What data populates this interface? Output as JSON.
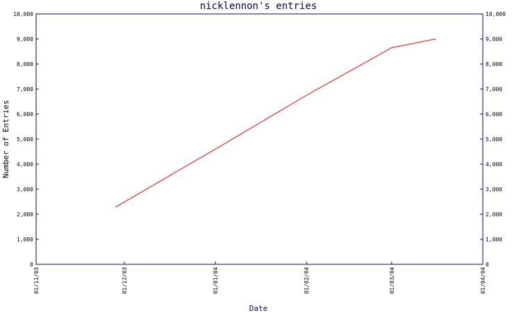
{
  "chart_data": {
    "type": "line",
    "title": "nicklennon's entries",
    "xlabel": "Date",
    "ylabel": "Number of Entries",
    "x_ticks": [
      "01/11/03",
      "01/12/03",
      "01/01/04",
      "01/02/04",
      "01/03/04",
      "01/04/04"
    ],
    "xlim": [
      "01/11/03",
      "01/04/04"
    ],
    "ylim": [
      0,
      10000
    ],
    "y_ticks": [
      0,
      1000,
      2000,
      3000,
      4000,
      5000,
      6000,
      7000,
      8000,
      9000,
      10000
    ],
    "y_tick_labels": [
      "0",
      "1,000",
      "2,000",
      "3,000",
      "4,000",
      "5,000",
      "6,000",
      "7,000",
      "8,000",
      "9,000",
      "10,000"
    ],
    "y_axis_mirrored": true,
    "grid": false,
    "series": [
      {
        "color": "#ff0000",
        "x": [
          "2003-11-28",
          "2004-01-01",
          "2004-02-01",
          "2004-03-01",
          "2004-03-16"
        ],
        "y": [
          2280,
          4600,
          6750,
          8650,
          9000
        ]
      }
    ]
  },
  "colors": {
    "axis": "#000080",
    "series": "#ff0000",
    "background": "#ffffff"
  }
}
